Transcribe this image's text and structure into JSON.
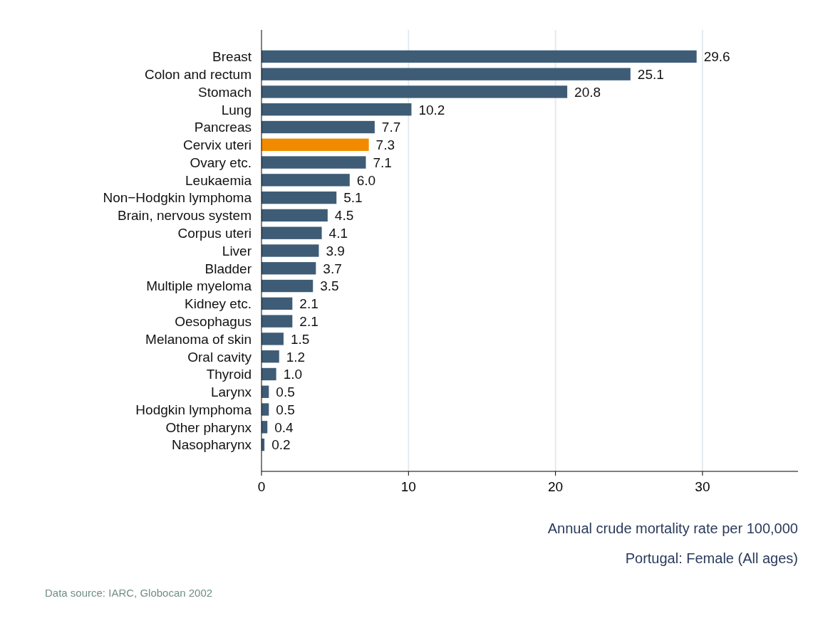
{
  "chart_data": {
    "type": "bar",
    "orientation": "horizontal",
    "xlabel": "Annual crude mortality rate per 100,000",
    "subtitle": "Portugal: Female (All ages)",
    "annotations": [
      "Data source: IARC, Globocan 2002"
    ],
    "categories": [
      "Breast",
      "Colon and rectum",
      "Stomach",
      "Lung",
      "Pancreas",
      "Cervix uteri",
      "Ovary etc.",
      "Leukaemia",
      "Non−Hodgkin lymphoma",
      "Brain, nervous system",
      "Corpus uteri",
      "Liver",
      "Bladder",
      "Multiple myeloma",
      "Kidney etc.",
      "Oesophagus",
      "Melanoma of skin",
      "Oral cavity",
      "Thyroid",
      "Larynx",
      "Hodgkin lymphoma",
      "Other pharynx",
      "Nasopharynx"
    ],
    "values": [
      29.6,
      25.1,
      20.8,
      10.2,
      7.7,
      7.3,
      7.1,
      6.0,
      5.1,
      4.5,
      4.1,
      3.9,
      3.7,
      3.5,
      2.1,
      2.1,
      1.5,
      1.2,
      1.0,
      0.5,
      0.5,
      0.4,
      0.2
    ],
    "value_labels": [
      "29.6",
      "25.1",
      "20.8",
      "10.2",
      "7.7",
      "7.3",
      "7.1",
      "6.0",
      "5.1",
      "4.5",
      "4.1",
      "3.9",
      "3.7",
      "3.5",
      "2.1",
      "2.1",
      "1.5",
      "1.2",
      "1.0",
      "0.5",
      "0.5",
      "0.4",
      "0.2"
    ],
    "colors": [
      "#3e5c76",
      "#3e5c76",
      "#3e5c76",
      "#3e5c76",
      "#3e5c76",
      "#f28a00",
      "#3e5c76",
      "#3e5c76",
      "#3e5c76",
      "#3e5c76",
      "#3e5c76",
      "#3e5c76",
      "#3e5c76",
      "#3e5c76",
      "#3e5c76",
      "#3e5c76",
      "#3e5c76",
      "#3e5c76",
      "#3e5c76",
      "#3e5c76",
      "#3e5c76",
      "#3e5c76",
      "#3e5c76"
    ],
    "xlim": [
      0,
      36.5
    ],
    "xticks": [
      0,
      10,
      20,
      30
    ],
    "grid": "x"
  }
}
